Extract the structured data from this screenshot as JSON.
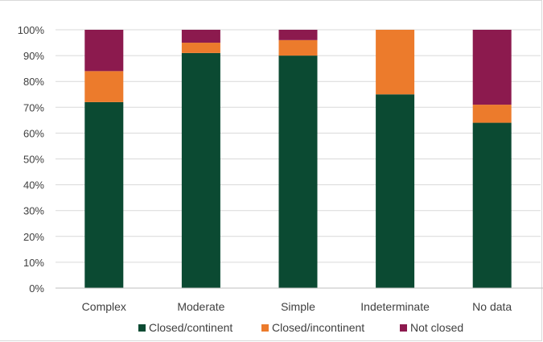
{
  "chart_data": {
    "type": "bar",
    "stacked": true,
    "categories": [
      "Complex",
      "Moderate",
      "Simple",
      "Indeterminate",
      "No data"
    ],
    "series": [
      {
        "name": "Closed/continent",
        "color": "#0b4a32",
        "values": [
          72,
          91,
          90,
          75,
          64
        ]
      },
      {
        "name": "Closed/incontinent",
        "color": "#ec7b2c",
        "values": [
          12,
          4,
          6,
          25,
          7
        ]
      },
      {
        "name": "Not closed",
        "color": "#8c1a4e",
        "values": [
          16,
          5,
          4,
          0,
          29
        ]
      }
    ],
    "ylim": [
      0,
      100
    ],
    "yticks": [
      "0%",
      "10%",
      "20%",
      "30%",
      "40%",
      "50%",
      "60%",
      "70%",
      "80%",
      "90%",
      "100%"
    ],
    "grid": true,
    "legend_position": "bottom"
  }
}
